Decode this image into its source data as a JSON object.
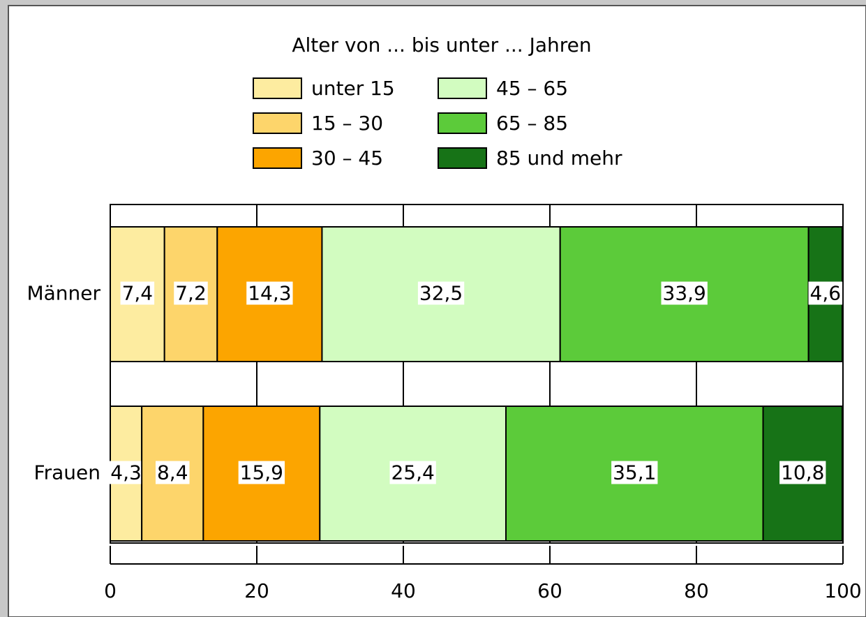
{
  "chart_data": {
    "type": "stacked_barh",
    "legend_title": "Alter von ... bis unter ... Jahren",
    "categories": [
      "Männer",
      "Frauen"
    ],
    "series": [
      {
        "name": "unter 15",
        "color": "#fdeca0",
        "values": [
          7.4,
          4.3
        ],
        "value_labels": [
          "7,4",
          "4,3"
        ]
      },
      {
        "name": "15 – 30",
        "color": "#fdd56b",
        "values": [
          7.2,
          8.4
        ],
        "value_labels": [
          "7,2",
          "8,4"
        ]
      },
      {
        "name": "30 – 45",
        "color": "#fca500",
        "values": [
          14.3,
          15.9
        ],
        "value_labels": [
          "14,3",
          "15,9"
        ]
      },
      {
        "name": "45 – 65",
        "color": "#d2fcc0",
        "values": [
          32.5,
          25.4
        ],
        "value_labels": [
          "32,5",
          "25,4"
        ]
      },
      {
        "name": "65 – 85",
        "color": "#5ccb3a",
        "values": [
          33.9,
          35.1
        ],
        "value_labels": [
          "33,9",
          "35,1"
        ]
      },
      {
        "name": "85 und mehr",
        "color": "#177317",
        "values": [
          4.6,
          10.8
        ],
        "value_labels": [
          "4,6",
          "10,8"
        ]
      }
    ],
    "xlim": [
      0,
      100
    ],
    "xticks": [
      0,
      20,
      40,
      60,
      80,
      100
    ],
    "grid": true
  }
}
